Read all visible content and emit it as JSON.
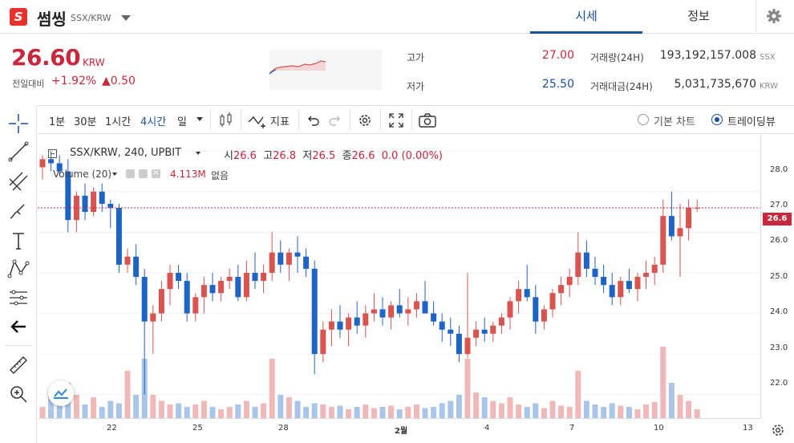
{
  "header": {
    "logo_letter": "S",
    "coin_name": "썸씽",
    "pair": "SSX/KRW",
    "tabs": [
      {
        "label": "시세",
        "active": true
      },
      {
        "label": "정보",
        "active": false
      }
    ]
  },
  "summary": {
    "price": "26.60",
    "unit": "KRW",
    "change_label": "전일대비",
    "change_pct": "+1.92%",
    "change_amt": "▲0.50",
    "high_label": "고가",
    "high": "27.00",
    "low_label": "저가",
    "low": "25.50",
    "volume_label": "거래량(24H)",
    "volume": "193,192,157.008",
    "volume_unit": "SSX",
    "amount_label": "거래대금(24H)",
    "amount": "5,031,735,670",
    "amount_unit": "KRW"
  },
  "toolbar": {
    "intervals": [
      "1분",
      "30분",
      "1시간",
      "4시간",
      "일"
    ],
    "active_interval": "4시간",
    "indicators_label": "지표",
    "basic_chart_label": "기본 차트",
    "tradingview_label": "트레이딩뷰"
  },
  "legend": {
    "symbol": "SSX/KRW, 240, UPBIT",
    "open_label": "시",
    "open": "26.6",
    "high_label": "고",
    "high": "26.8",
    "low_label": "저",
    "low": "26.5",
    "close_label": "종",
    "close": "26.6",
    "change": "0.0 (0.00%)",
    "volume_name": "Volume (20)",
    "volume_value": "4.113M",
    "volume_extra": "없음"
  },
  "colors": {
    "up": "#c8283c",
    "down": "#1a4fa0",
    "up_candle": "#d9534f",
    "down_candle": "#1e63c6",
    "up_vol": "#f0b8b8",
    "down_vol": "#a9c6ea",
    "accent": "#1a4fa0"
  },
  "chart_data": {
    "type": "candlestick",
    "y_ticks": [
      "28.0",
      "27.0",
      "26.0",
      "25.0",
      "24.0",
      "23.0",
      "22.0"
    ],
    "x_ticks": [
      "22",
      "25",
      "28",
      "2월",
      "4",
      "7",
      "10",
      "13"
    ],
    "last_price_label": "26.6",
    "ylim": [
      21.4,
      28.4
    ],
    "candles": [
      [
        27.6,
        27.9,
        27.3,
        27.8
      ],
      [
        27.8,
        28.0,
        27.5,
        27.7
      ],
      [
        27.7,
        27.9,
        27.4,
        27.5
      ],
      [
        27.5,
        27.8,
        26.0,
        26.3
      ],
      [
        26.3,
        27.0,
        26.0,
        26.9
      ],
      [
        26.9,
        27.2,
        26.3,
        26.5
      ],
      [
        26.5,
        27.1,
        26.4,
        27.0
      ],
      [
        27.0,
        27.2,
        26.5,
        26.7
      ],
      [
        26.7,
        26.8,
        26.1,
        26.6
      ],
      [
        26.6,
        26.7,
        25.0,
        25.2
      ],
      [
        25.2,
        25.6,
        25.0,
        25.4
      ],
      [
        25.4,
        25.7,
        24.7,
        24.9
      ],
      [
        24.9,
        25.1,
        22.0,
        23.8
      ],
      [
        23.8,
        24.2,
        23.0,
        24.0
      ],
      [
        24.0,
        24.8,
        23.8,
        24.6
      ],
      [
        24.6,
        25.2,
        24.2,
        25.0
      ],
      [
        25.0,
        25.2,
        24.6,
        24.8
      ],
      [
        24.8,
        25.0,
        23.8,
        24.0
      ],
      [
        24.0,
        24.5,
        23.8,
        24.4
      ],
      [
        24.4,
        24.9,
        24.0,
        24.7
      ],
      [
        24.7,
        25.0,
        24.3,
        24.5
      ],
      [
        24.5,
        24.9,
        24.3,
        24.8
      ],
      [
        24.8,
        25.1,
        24.6,
        24.9
      ],
      [
        24.9,
        25.2,
        24.3,
        24.4
      ],
      [
        24.4,
        25.3,
        24.3,
        25.0
      ],
      [
        25.0,
        25.5,
        24.6,
        24.8
      ],
      [
        24.8,
        25.2,
        24.5,
        25.0
      ],
      [
        25.0,
        26.0,
        24.8,
        25.5
      ],
      [
        25.5,
        25.8,
        25.0,
        25.2
      ],
      [
        25.2,
        25.6,
        24.8,
        25.5
      ],
      [
        25.5,
        25.9,
        25.0,
        25.4
      ],
      [
        25.4,
        25.6,
        24.9,
        25.1
      ],
      [
        25.1,
        25.3,
        22.5,
        23.0
      ],
      [
        23.0,
        23.8,
        22.8,
        23.6
      ],
      [
        23.6,
        24.1,
        23.2,
        23.8
      ],
      [
        23.8,
        24.2,
        23.4,
        23.6
      ],
      [
        23.6,
        24.0,
        23.2,
        23.9
      ],
      [
        23.9,
        24.3,
        23.5,
        23.7
      ],
      [
        23.7,
        24.2,
        23.4,
        24.0
      ],
      [
        24.0,
        24.5,
        23.8,
        24.1
      ],
      [
        24.1,
        24.4,
        23.7,
        23.9
      ],
      [
        23.9,
        24.3,
        23.6,
        24.2
      ],
      [
        24.2,
        24.6,
        23.9,
        24.0
      ],
      [
        24.0,
        24.4,
        23.7,
        24.1
      ],
      [
        24.1,
        24.5,
        23.9,
        24.3
      ],
      [
        24.3,
        24.8,
        24.0,
        24.0
      ],
      [
        24.0,
        24.3,
        23.7,
        23.8
      ],
      [
        23.8,
        24.0,
        23.3,
        23.6
      ],
      [
        23.6,
        23.9,
        23.2,
        23.5
      ],
      [
        23.5,
        23.7,
        22.8,
        23.0
      ],
      [
        23.0,
        25.0,
        22.9,
        23.4
      ],
      [
        23.4,
        23.8,
        23.2,
        23.6
      ],
      [
        23.6,
        23.9,
        23.3,
        23.5
      ],
      [
        23.5,
        23.8,
        23.3,
        23.7
      ],
      [
        23.7,
        24.0,
        23.5,
        23.9
      ],
      [
        23.9,
        24.4,
        23.6,
        24.3
      ],
      [
        24.3,
        24.8,
        24.0,
        24.6
      ],
      [
        24.6,
        25.2,
        24.3,
        24.4
      ],
      [
        24.4,
        24.7,
        23.5,
        23.8
      ],
      [
        23.8,
        24.2,
        23.6,
        24.1
      ],
      [
        24.1,
        24.6,
        23.9,
        24.5
      ],
      [
        24.5,
        24.9,
        24.2,
        24.7
      ],
      [
        24.7,
        25.1,
        24.4,
        24.9
      ],
      [
        24.9,
        26.0,
        24.7,
        25.5
      ],
      [
        25.5,
        25.8,
        24.9,
        25.1
      ],
      [
        25.1,
        25.4,
        24.7,
        24.9
      ],
      [
        24.9,
        25.2,
        24.5,
        24.7
      ],
      [
        24.7,
        25.0,
        24.2,
        24.4
      ],
      [
        24.4,
        24.9,
        24.2,
        24.8
      ],
      [
        24.8,
        25.1,
        24.5,
        24.6
      ],
      [
        24.6,
        25.0,
        24.3,
        24.9
      ],
      [
        24.9,
        25.3,
        24.6,
        25.0
      ],
      [
        25.0,
        25.4,
        24.7,
        25.2
      ],
      [
        25.2,
        26.8,
        25.0,
        26.4
      ],
      [
        26.4,
        27.0,
        25.8,
        25.9
      ],
      [
        25.9,
        26.7,
        24.9,
        26.1
      ],
      [
        26.1,
        26.8,
        25.8,
        26.6
      ],
      [
        26.6,
        26.8,
        26.5,
        26.6
      ]
    ],
    "volumes": [
      1,
      2,
      1.5,
      3,
      2,
      1.2,
      1.8,
      1,
      1.5,
      1.3,
      4,
      2,
      5,
      2,
      1.5,
      1.2,
      1.3,
      1,
      1.2,
      1.5,
      1,
      0.8,
      1,
      1.2,
      1.5,
      1,
      1.3,
      5,
      2,
      1.8,
      1.5,
      1,
      1.3,
      1.2,
      1,
      1.1,
      0.8,
      1,
      1.2,
      0.9,
      1,
      1.1,
      0.8,
      1,
      1.2,
      0.9,
      1,
      1.3,
      1.5,
      2,
      5,
      2.2,
      1.8,
      1.5,
      1.3,
      1.8,
      1.2,
      1,
      1.3,
      0.9,
      1.5,
      1.1,
      1,
      4,
      1.5,
      1.2,
      1,
      1.3,
      1.1,
      1,
      0.8,
      1.2,
      1.4,
      6,
      3,
      2,
      1.5,
      0.8
    ]
  }
}
